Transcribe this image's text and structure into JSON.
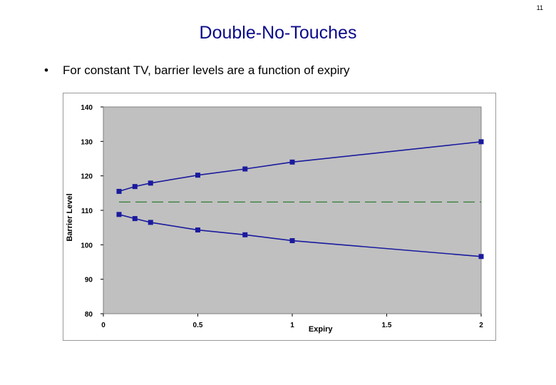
{
  "slide": {
    "page_number": "11",
    "title": "Double-No-Touches",
    "bullet_mark": "•",
    "bullet_text": "For constant TV, barrier levels are a function of expiry"
  },
  "colors": {
    "series": "#1a1a9e",
    "reference": "#2e7d32",
    "plot_background": "#c0c0c0"
  },
  "chart_data": {
    "type": "line",
    "title": "",
    "xlabel": "Expiry",
    "ylabel": "Barrier Level",
    "xlim": [
      0,
      2
    ],
    "ylim": [
      80,
      140
    ],
    "x_ticks": [
      0,
      0.5,
      1,
      1.5,
      2
    ],
    "x_tick_labels": [
      "0",
      "0.5",
      "1",
      "1.5",
      "2"
    ],
    "y_ticks": [
      80,
      90,
      100,
      110,
      120,
      130,
      140
    ],
    "y_tick_labels": [
      "80",
      "90",
      "100",
      "110",
      "120",
      "130",
      "140"
    ],
    "grid": false,
    "legend": "none",
    "series": [
      {
        "x": [
          0.083,
          0.167,
          0.25,
          0.5,
          0.75,
          1,
          2
        ],
        "values": [
          115.5,
          116.9,
          117.9,
          120.2,
          122.0,
          124.0,
          129.9
        ]
      },
      {
        "x": [
          0.083,
          0.167,
          0.25,
          0.5,
          0.75,
          1,
          2
        ],
        "values": [
          108.8,
          107.6,
          106.5,
          104.3,
          102.9,
          101.2,
          96.6
        ]
      }
    ],
    "reference_line": {
      "y": 112.4,
      "x_range": [
        0.083,
        2
      ]
    }
  }
}
